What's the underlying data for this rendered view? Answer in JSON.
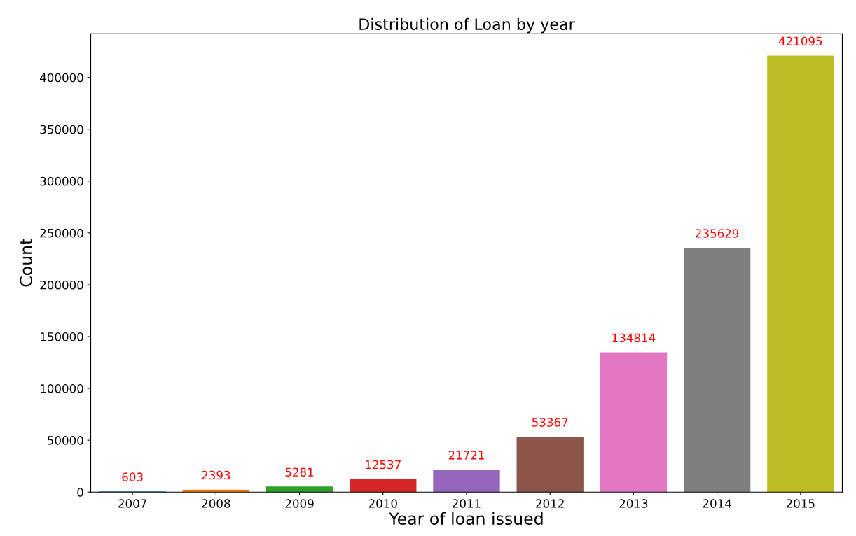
{
  "chart_data": {
    "type": "bar",
    "title": "Distribution of Loan by year",
    "xlabel": "Year of loan issued",
    "ylabel": "Count",
    "categories": [
      "2007",
      "2008",
      "2009",
      "2010",
      "2011",
      "2012",
      "2013",
      "2014",
      "2015"
    ],
    "values": [
      603,
      2393,
      5281,
      12537,
      21721,
      53367,
      134814,
      235629,
      421095
    ],
    "colors": [
      "#1f77b4",
      "#ff7f0e",
      "#2ca02c",
      "#d62728",
      "#9467bd",
      "#8c564b",
      "#e377c2",
      "#7f7f7f",
      "#bcbd22"
    ],
    "ylim": [
      0,
      442150
    ],
    "yticks": [
      0,
      50000,
      100000,
      150000,
      200000,
      250000,
      300000,
      350000,
      400000
    ],
    "data_labels": true,
    "grid": false,
    "legend": false
  }
}
